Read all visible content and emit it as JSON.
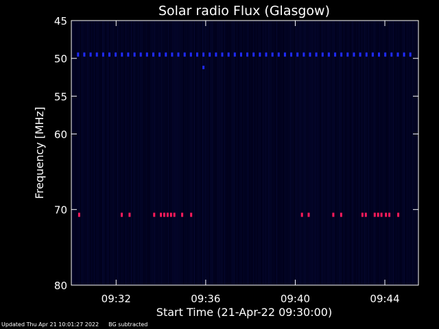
{
  "chart_data": {
    "type": "heatmap",
    "title": "Solar radio Flux (Glasgow)",
    "xlabel": "Start Time (21-Apr-22 09:30:00)",
    "ylabel": "Frequency [MHz]",
    "x_unit": "minutes after 09:30:00",
    "xlim": [
      0,
      15.5
    ],
    "ylim": [
      45,
      80
    ],
    "y_ticks": [
      {
        "value": 45,
        "label": "45"
      },
      {
        "value": 50,
        "label": "50"
      },
      {
        "value": 55,
        "label": "55"
      },
      {
        "value": 60,
        "label": "60"
      },
      {
        "value": 70,
        "label": "70"
      },
      {
        "value": 80,
        "label": "80"
      }
    ],
    "x_ticks": [
      {
        "value": 2,
        "label": "09:32"
      },
      {
        "value": 6,
        "label": "09:36"
      },
      {
        "value": 10,
        "label": "09:40"
      },
      {
        "value": 14,
        "label": "09:44"
      }
    ],
    "background_color": "#00001a",
    "interference_bands": [
      {
        "frequency": 49.5,
        "color": "#1f2bff",
        "x_start": 0.3,
        "x_end": 15.4,
        "spacing": 0.28
      },
      {
        "frequency": 70.7,
        "color": "#ff1a5a",
        "x_positions": [
          0.35,
          2.25,
          2.6,
          3.7,
          4.0,
          4.15,
          4.3,
          4.45,
          4.6,
          4.95,
          5.35,
          10.3,
          10.6,
          11.7,
          12.05,
          13.0,
          13.15,
          13.55,
          13.7,
          13.85,
          14.05,
          14.2,
          14.6
        ]
      }
    ],
    "spots": [
      {
        "x": 5.9,
        "frequency": 51.2,
        "color": "#1f2bff"
      }
    ]
  },
  "footer": {
    "updated": "Updated Thu Apr 21 10:01:27 2022",
    "note": "BG subtracted"
  }
}
